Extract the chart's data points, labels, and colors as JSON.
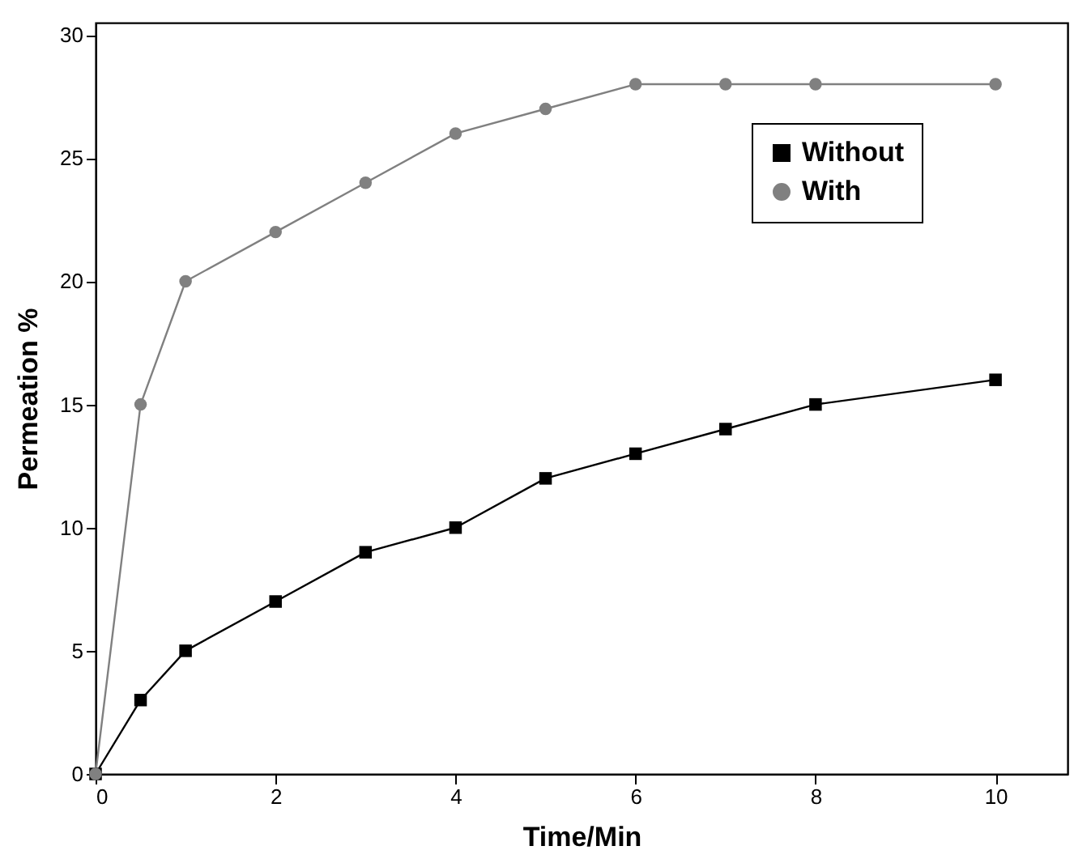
{
  "chart_data": {
    "type": "line",
    "xlabel": "Time/Min",
    "ylabel": "Permeation %",
    "xlim": [
      0,
      10.8
    ],
    "ylim": [
      0,
      30.5
    ],
    "xticks": [
      0,
      2,
      4,
      6,
      8,
      10
    ],
    "yticks": [
      0,
      5,
      10,
      15,
      20,
      25,
      30
    ],
    "legend": "top right",
    "grid": false,
    "series": [
      {
        "name": "Without",
        "color": "#000000",
        "marker": "square",
        "x": [
          0,
          0.5,
          1,
          2,
          3,
          4,
          5,
          6,
          7,
          8,
          10
        ],
        "values": [
          0,
          3,
          5,
          7,
          9,
          10,
          12,
          13,
          14,
          15,
          16
        ]
      },
      {
        "name": "With",
        "color": "#808080",
        "marker": "circle",
        "x": [
          0,
          0.5,
          1,
          2,
          3,
          4,
          5,
          6,
          7,
          8,
          10
        ],
        "values": [
          0,
          15,
          20,
          22,
          24,
          26,
          27,
          28,
          28,
          28,
          28
        ]
      }
    ]
  }
}
